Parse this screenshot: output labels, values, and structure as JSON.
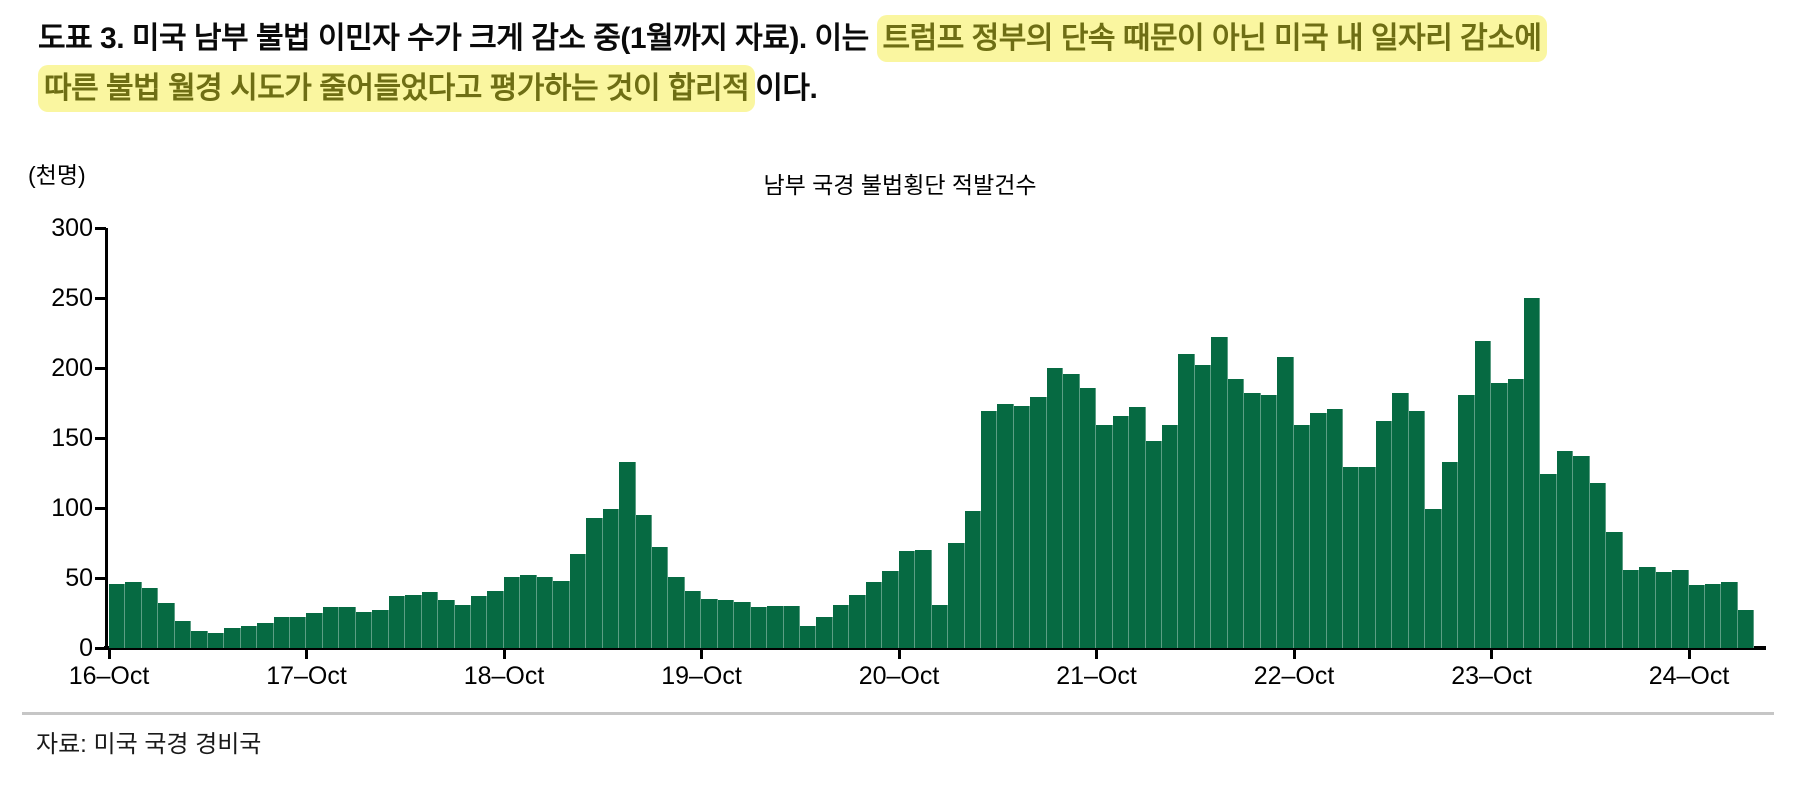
{
  "header": {
    "title_prefix": "도표 3. 미국 남부 불법 이민자 수가 크게 감소 중(1월까지 자료). 이는 ",
    "title_highlight_line1": "트럼프 정부의 단속 때문이 아닌 미국 내 일자리 감소에",
    "title_highlight_line2": "따른 불법 월경 시도가 줄어들었다고 평가하는 것이 합리적",
    "title_suffix": "이다."
  },
  "chart": {
    "unit_label": "(천명)",
    "title": "남부 국경 불법횡단 적발건수",
    "y_tick_labels": [
      "0",
      "50",
      "100",
      "150",
      "200",
      "250",
      "300"
    ],
    "x_tick_labels": [
      "16–Oct",
      "17–Oct",
      "18–Oct",
      "19–Oct",
      "20–Oct",
      "21–Oct",
      "22–Oct",
      "23–Oct",
      "24–Oct"
    ]
  },
  "source": "자료: 미국 국경 경비국",
  "colors": {
    "bar": "#066a42",
    "highlight_bg": "#faf6a0",
    "highlight_text": "#6e6e14",
    "axis": "#000000",
    "separator": "#c6c6c6"
  },
  "chart_data": {
    "type": "bar",
    "title": "남부 국경 불법횡단 적발건수",
    "xlabel": "",
    "ylabel": "(천명)",
    "ylim": [
      0,
      300
    ],
    "y_ticks": [
      0,
      50,
      100,
      150,
      200,
      250,
      300
    ],
    "grid": false,
    "legend": false,
    "x_tick_labels": [
      "16–Oct",
      "17–Oct",
      "18–Oct",
      "19–Oct",
      "20–Oct",
      "21–Oct",
      "22–Oct",
      "23–Oct",
      "24–Oct"
    ],
    "months": [
      "2016-10",
      "2016-11",
      "2016-12",
      "2017-01",
      "2017-02",
      "2017-03",
      "2017-04",
      "2017-05",
      "2017-06",
      "2017-07",
      "2017-08",
      "2017-09",
      "2017-10",
      "2017-11",
      "2017-12",
      "2018-01",
      "2018-02",
      "2018-03",
      "2018-04",
      "2018-05",
      "2018-06",
      "2018-07",
      "2018-08",
      "2018-09",
      "2018-10",
      "2018-11",
      "2018-12",
      "2019-01",
      "2019-02",
      "2019-03",
      "2019-04",
      "2019-05",
      "2019-06",
      "2019-07",
      "2019-08",
      "2019-09",
      "2019-10",
      "2019-11",
      "2019-12",
      "2020-01",
      "2020-02",
      "2020-03",
      "2020-04",
      "2020-05",
      "2020-06",
      "2020-07",
      "2020-08",
      "2020-09",
      "2020-10",
      "2020-11",
      "2020-12",
      "2021-01",
      "2021-02",
      "2021-03",
      "2021-04",
      "2021-05",
      "2021-06",
      "2021-07",
      "2021-08",
      "2021-09",
      "2021-10",
      "2021-11",
      "2021-12",
      "2022-01",
      "2022-02",
      "2022-03",
      "2022-04",
      "2022-05",
      "2022-06",
      "2022-07",
      "2022-08",
      "2022-09",
      "2022-10",
      "2022-11",
      "2022-12",
      "2023-01",
      "2023-02",
      "2023-03",
      "2023-04",
      "2023-05",
      "2023-06",
      "2023-07",
      "2023-08",
      "2023-09",
      "2023-10",
      "2023-11",
      "2023-12",
      "2024-01",
      "2024-02",
      "2024-03",
      "2024-04",
      "2024-05",
      "2024-06",
      "2024-07",
      "2024-08",
      "2024-09",
      "2024-10",
      "2024-11",
      "2024-12",
      "2025-01"
    ],
    "values": [
      46,
      47,
      43,
      32,
      19,
      12,
      11,
      14,
      16,
      18,
      22,
      22,
      25,
      29,
      29,
      26,
      27,
      37,
      38,
      40,
      34,
      31,
      37,
      41,
      51,
      52,
      51,
      48,
      67,
      93,
      99,
      133,
      95,
      72,
      51,
      41,
      35,
      34,
      33,
      29,
      30,
      30,
      16,
      22,
      31,
      38,
      47,
      55,
      69,
      70,
      31,
      75,
      98,
      169,
      174,
      173,
      179,
      200,
      196,
      186,
      159,
      166,
      172,
      148,
      159,
      210,
      202,
      222,
      192,
      182,
      181,
      208,
      159,
      168,
      171,
      129,
      129,
      162,
      182,
      169,
      99,
      133,
      181,
      219,
      189,
      192,
      250,
      124,
      141,
      137,
      118,
      83,
      56,
      58,
      54,
      56,
      45,
      46,
      47,
      27
    ]
  }
}
